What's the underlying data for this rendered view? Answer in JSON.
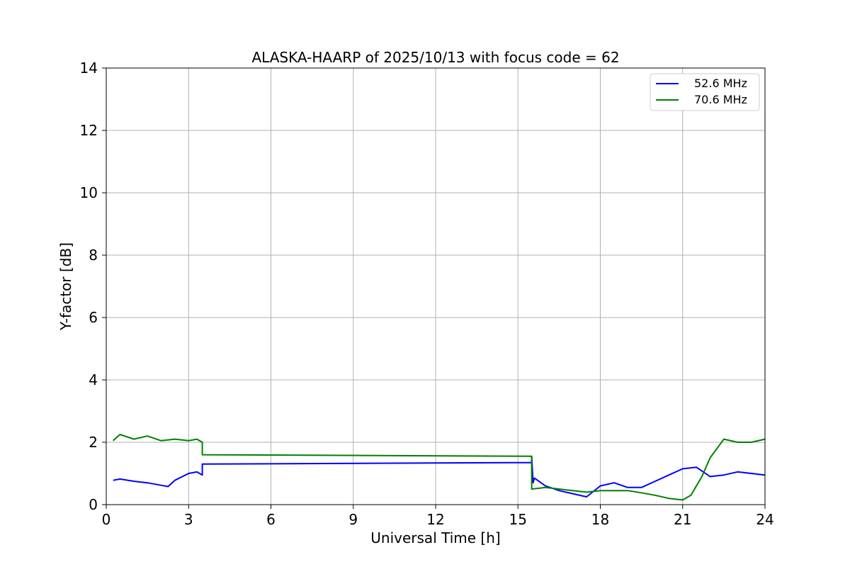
{
  "chart_data": {
    "type": "line",
    "title": "ALASKA-HAARP of 2025/10/13 with focus code = 62",
    "xlabel": "Universal Time [h]",
    "ylabel": "Y-factor [dB]",
    "xlim": [
      0,
      24
    ],
    "ylim": [
      0,
      14
    ],
    "xticks": [
      0,
      3,
      6,
      9,
      12,
      15,
      18,
      21,
      24
    ],
    "yticks": [
      0,
      2,
      4,
      6,
      8,
      10,
      12,
      14
    ],
    "grid": true,
    "legend_position": "top-right",
    "series": [
      {
        "name": "52.6 MHz",
        "color": "#0000ff",
        "x": [
          0.25,
          0.5,
          1.0,
          1.5,
          2.0,
          2.25,
          2.5,
          3.0,
          3.3,
          3.5,
          3.5,
          15.5,
          15.5,
          15.55,
          15.6,
          16.0,
          16.5,
          17.0,
          17.5,
          18.0,
          18.5,
          19.0,
          19.5,
          20.0,
          20.5,
          21.0,
          21.5,
          22.0,
          22.5,
          23.0,
          23.5,
          24.0
        ],
        "y": [
          0.78,
          0.82,
          0.75,
          0.7,
          0.62,
          0.58,
          0.78,
          1.0,
          1.05,
          0.95,
          1.3,
          1.35,
          1.55,
          0.7,
          0.85,
          0.6,
          0.45,
          0.35,
          0.25,
          0.6,
          0.7,
          0.55,
          0.55,
          0.75,
          0.95,
          1.15,
          1.2,
          0.9,
          0.95,
          1.05,
          1.0,
          0.95
        ]
      },
      {
        "name": "70.6 MHz",
        "color": "#008000",
        "x": [
          0.25,
          0.5,
          1.0,
          1.5,
          2.0,
          2.5,
          3.0,
          3.3,
          3.5,
          3.5,
          15.5,
          15.5,
          16.0,
          16.5,
          17.0,
          17.5,
          18.0,
          18.5,
          19.0,
          19.5,
          20.0,
          20.5,
          21.0,
          21.3,
          21.7,
          22.0,
          22.5,
          23.0,
          23.5,
          24.0
        ],
        "y": [
          2.05,
          2.25,
          2.1,
          2.2,
          2.05,
          2.1,
          2.05,
          2.1,
          2.0,
          1.6,
          1.55,
          0.5,
          0.55,
          0.5,
          0.45,
          0.4,
          0.45,
          0.45,
          0.45,
          0.38,
          0.3,
          0.2,
          0.15,
          0.3,
          0.9,
          1.5,
          2.1,
          2.0,
          2.0,
          2.1
        ]
      }
    ]
  }
}
